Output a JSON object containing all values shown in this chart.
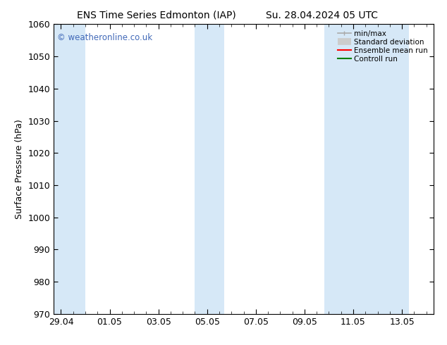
{
  "title_left": "ENS Time Series Edmonton (IAP)",
  "title_right": "Su. 28.04.2024 05 UTC",
  "ylabel": "Surface Pressure (hPa)",
  "ylim": [
    970,
    1060
  ],
  "yticks": [
    970,
    980,
    990,
    1000,
    1010,
    1020,
    1030,
    1040,
    1050,
    1060
  ],
  "xtick_labels": [
    "29.04",
    "01.05",
    "03.05",
    "05.05",
    "07.05",
    "09.05",
    "11.05",
    "13.05"
  ],
  "xtick_positions": [
    0,
    2,
    4,
    6,
    8,
    10,
    12,
    14
  ],
  "xmin": -0.3,
  "xmax": 15.3,
  "shaded_bands": [
    {
      "x_start": -0.3,
      "x_end": 1.0
    },
    {
      "x_start": 5.5,
      "x_end": 6.7
    },
    {
      "x_start": 10.8,
      "x_end": 14.3
    }
  ],
  "shade_color": "#d6e8f7",
  "watermark_text": "© weatheronline.co.uk",
  "watermark_color": "#4169b8",
  "legend_items": [
    {
      "label": "min/max",
      "color": "#aaaaaa",
      "lw": 1.2
    },
    {
      "label": "Standard deviation",
      "color": "#cccccc",
      "lw": 7
    },
    {
      "label": "Ensemble mean run",
      "color": "#ff0000",
      "lw": 1.5
    },
    {
      "label": "Controll run",
      "color": "#008000",
      "lw": 1.5
    }
  ],
  "bg_color": "#ffffff",
  "title_fontsize": 10,
  "label_fontsize": 9,
  "tick_fontsize": 9
}
